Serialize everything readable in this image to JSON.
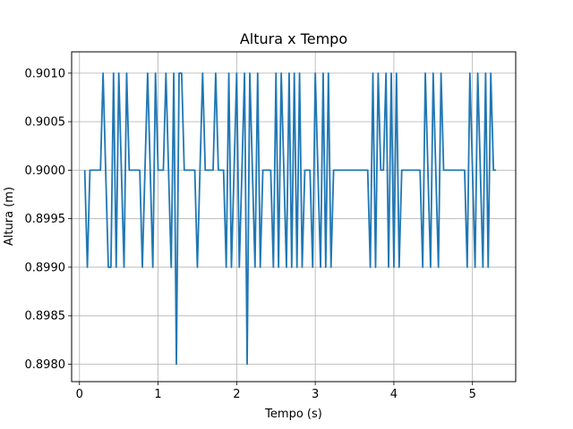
{
  "chart_data": {
    "type": "line",
    "title": "Altura x Tempo",
    "xlabel": "Tempo (s)",
    "ylabel": "Altura (m)",
    "xlim": [
      -0.1,
      5.55
    ],
    "ylim": [
      0.89782,
      0.90122
    ],
    "xticks": [
      0,
      1,
      2,
      3,
      4,
      5
    ],
    "xtick_labels": [
      "0",
      "1",
      "2",
      "3",
      "4",
      "5"
    ],
    "yticks": [
      0.898,
      0.8985,
      0.899,
      0.8995,
      0.9,
      0.9005,
      0.901
    ],
    "ytick_labels": [
      "0.8980",
      "0.8985",
      "0.8990",
      "0.8995",
      "0.9000",
      "0.9005",
      "0.9010"
    ],
    "grid": true,
    "line_color": "#1f77b4",
    "series": [
      {
        "x": [
          0.067,
          0.1,
          0.133,
          0.167,
          0.2,
          0.233,
          0.267,
          0.3,
          0.333,
          0.367,
          0.4,
          0.433,
          0.467,
          0.5,
          0.533,
          0.567,
          0.6,
          0.633,
          0.667,
          0.7,
          0.733,
          0.767,
          0.8,
          0.833,
          0.867,
          0.9,
          0.933,
          0.967,
          1.0,
          1.033,
          1.067,
          1.1,
          1.133,
          1.167,
          1.2,
          1.233,
          1.267,
          1.3,
          1.333,
          1.367,
          1.4,
          1.433,
          1.467,
          1.5,
          1.533,
          1.567,
          1.6,
          1.633,
          1.667,
          1.7,
          1.733,
          1.767,
          1.8,
          1.833,
          1.867,
          1.9,
          1.933,
          1.967,
          2.0,
          2.033,
          2.067,
          2.1,
          2.133,
          2.167,
          2.2,
          2.233,
          2.267,
          2.3,
          2.333,
          2.367,
          2.4,
          2.433,
          2.467,
          2.5,
          2.533,
          2.567,
          2.6,
          2.633,
          2.667,
          2.7,
          2.733,
          2.767,
          2.8,
          2.833,
          2.867,
          2.9,
          2.933,
          2.967,
          3.0,
          3.033,
          3.067,
          3.1,
          3.133,
          3.167,
          3.2,
          3.233,
          3.267,
          3.3,
          3.333,
          3.367,
          3.4,
          3.433,
          3.467,
          3.5,
          3.533,
          3.567,
          3.6,
          3.633,
          3.667,
          3.7,
          3.733,
          3.767,
          3.8,
          3.833,
          3.867,
          3.9,
          3.933,
          3.967,
          4.0,
          4.033,
          4.067,
          4.1,
          4.133,
          4.167,
          4.2,
          4.233,
          4.267,
          4.3,
          4.333,
          4.367,
          4.4,
          4.433,
          4.467,
          4.5,
          4.533,
          4.567,
          4.6,
          4.633,
          4.667,
          4.7,
          4.733,
          4.767,
          4.8,
          4.833,
          4.867,
          4.9,
          4.933,
          4.967,
          5.0,
          5.033,
          5.067,
          5.1,
          5.133,
          5.167,
          5.2,
          5.233,
          5.267,
          5.3
        ],
        "y": [
          0.9,
          0.899,
          0.9,
          0.9,
          0.9,
          0.9,
          0.9,
          0.901,
          0.9,
          0.899,
          0.899,
          0.901,
          0.899,
          0.901,
          0.9,
          0.899,
          0.901,
          0.9,
          0.9,
          0.9,
          0.9,
          0.9,
          0.899,
          0.9,
          0.901,
          0.9,
          0.899,
          0.901,
          0.9,
          0.9,
          0.9,
          0.901,
          0.9,
          0.899,
          0.901,
          0.898,
          0.901,
          0.901,
          0.9,
          0.9,
          0.9,
          0.9,
          0.9,
          0.899,
          0.9,
          0.901,
          0.9,
          0.9,
          0.9,
          0.9,
          0.901,
          0.9,
          0.9,
          0.9,
          0.899,
          0.901,
          0.899,
          0.9,
          0.901,
          0.899,
          0.9,
          0.901,
          0.898,
          0.901,
          0.9,
          0.899,
          0.901,
          0.899,
          0.9,
          0.9,
          0.9,
          0.9,
          0.899,
          0.901,
          0.899,
          0.901,
          0.9,
          0.899,
          0.901,
          0.899,
          0.901,
          0.899,
          0.901,
          0.899,
          0.9,
          0.9,
          0.9,
          0.899,
          0.901,
          0.9,
          0.899,
          0.901,
          0.899,
          0.901,
          0.899,
          0.9,
          0.9,
          0.9,
          0.9,
          0.9,
          0.9,
          0.9,
          0.9,
          0.9,
          0.9,
          0.9,
          0.9,
          0.9,
          0.9,
          0.899,
          0.901,
          0.899,
          0.901,
          0.9,
          0.9,
          0.901,
          0.899,
          0.901,
          0.899,
          0.901,
          0.899,
          0.9,
          0.9,
          0.9,
          0.9,
          0.9,
          0.9,
          0.9,
          0.9,
          0.899,
          0.901,
          0.9,
          0.899,
          0.901,
          0.9,
          0.899,
          0.901,
          0.9,
          0.9,
          0.9,
          0.9,
          0.9,
          0.9,
          0.9,
          0.9,
          0.9,
          0.899,
          0.901,
          0.9,
          0.899,
          0.901,
          0.9,
          0.899,
          0.901,
          0.899,
          0.901,
          0.9,
          0.9
        ]
      }
    ]
  }
}
